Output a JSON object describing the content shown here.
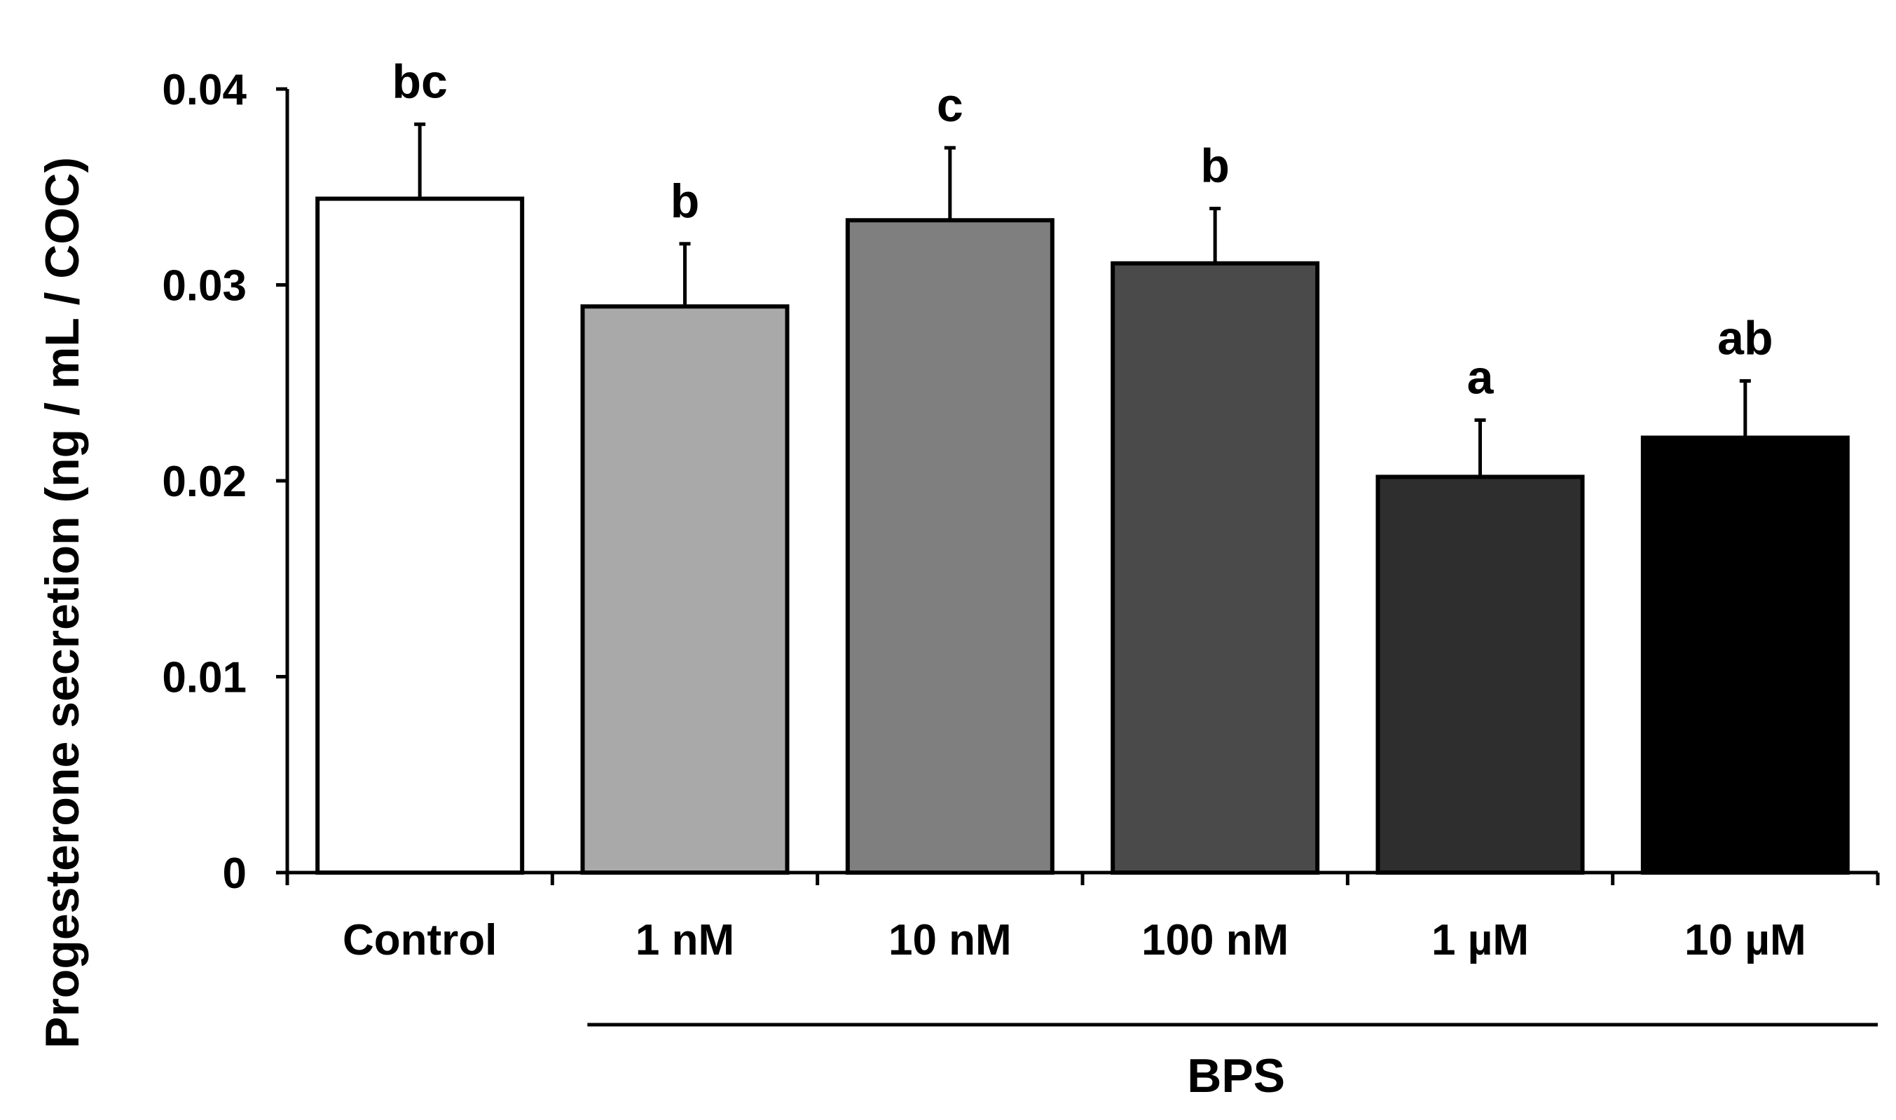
{
  "chart_data": {
    "type": "bar",
    "title": "",
    "xlabel": "",
    "ylabel": "Progesterone secretion (ng / mL / COC)",
    "ylim": [
      0,
      0.04
    ],
    "yticks": [
      0,
      0.01,
      0.02,
      0.03,
      0.04
    ],
    "ytick_labels": [
      "0",
      "0.01",
      "0.02",
      "0.03",
      "0.04"
    ],
    "grid": false,
    "categories": [
      "Control",
      "1 nM",
      "10 nM",
      "100 nM",
      "1 µM",
      "10 µM"
    ],
    "values": [
      0.0344,
      0.0289,
      0.0333,
      0.0311,
      0.0202,
      0.0222
    ],
    "errors": [
      0.0038,
      0.0032,
      0.0037,
      0.0028,
      0.0029,
      0.0029
    ],
    "significance_labels": [
      "bc",
      "b",
      "c",
      "b",
      "a",
      "ab"
    ],
    "bar_colors": [
      "#ffffff",
      "#a9a9a9",
      "#7f7f7f",
      "#4a4a4a",
      "#2e2e2e",
      "#000000"
    ],
    "group_label": "BPS",
    "group_start_category": 1,
    "group_end_category": 5
  }
}
